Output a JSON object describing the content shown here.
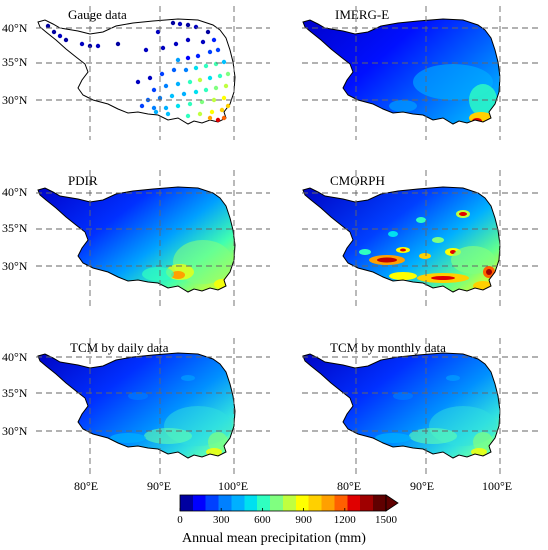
{
  "panels": [
    {
      "title": "Gauge data",
      "type": "points"
    },
    {
      "title": "IMERG-E",
      "type": "field"
    },
    {
      "title": "PDIR",
      "type": "field"
    },
    {
      "title": "CMORPH",
      "type": "field"
    },
    {
      "title": "TCM by daily data",
      "type": "field"
    },
    {
      "title": "TCM by monthly data",
      "type": "field"
    }
  ],
  "lat_labels": [
    "40°N",
    "35°N",
    "30°N"
  ],
  "lon_labels": [
    "80°E",
    "90°E",
    "100°E"
  ],
  "colorbar": {
    "label": "Annual mean precipitation (mm)",
    "ticks": [
      "0",
      "300",
      "600",
      "900",
      "1200",
      "1500"
    ],
    "min": 0,
    "max": 1500,
    "colors": [
      "#0000a0",
      "#0000ff",
      "#0040ff",
      "#0080ff",
      "#00b0ff",
      "#00e0f0",
      "#30ffc0",
      "#80ff80",
      "#c0ff40",
      "#ffff00",
      "#ffd000",
      "#ffa000",
      "#ff6000",
      "#e00000",
      "#a00000",
      "#600000"
    ]
  }
}
